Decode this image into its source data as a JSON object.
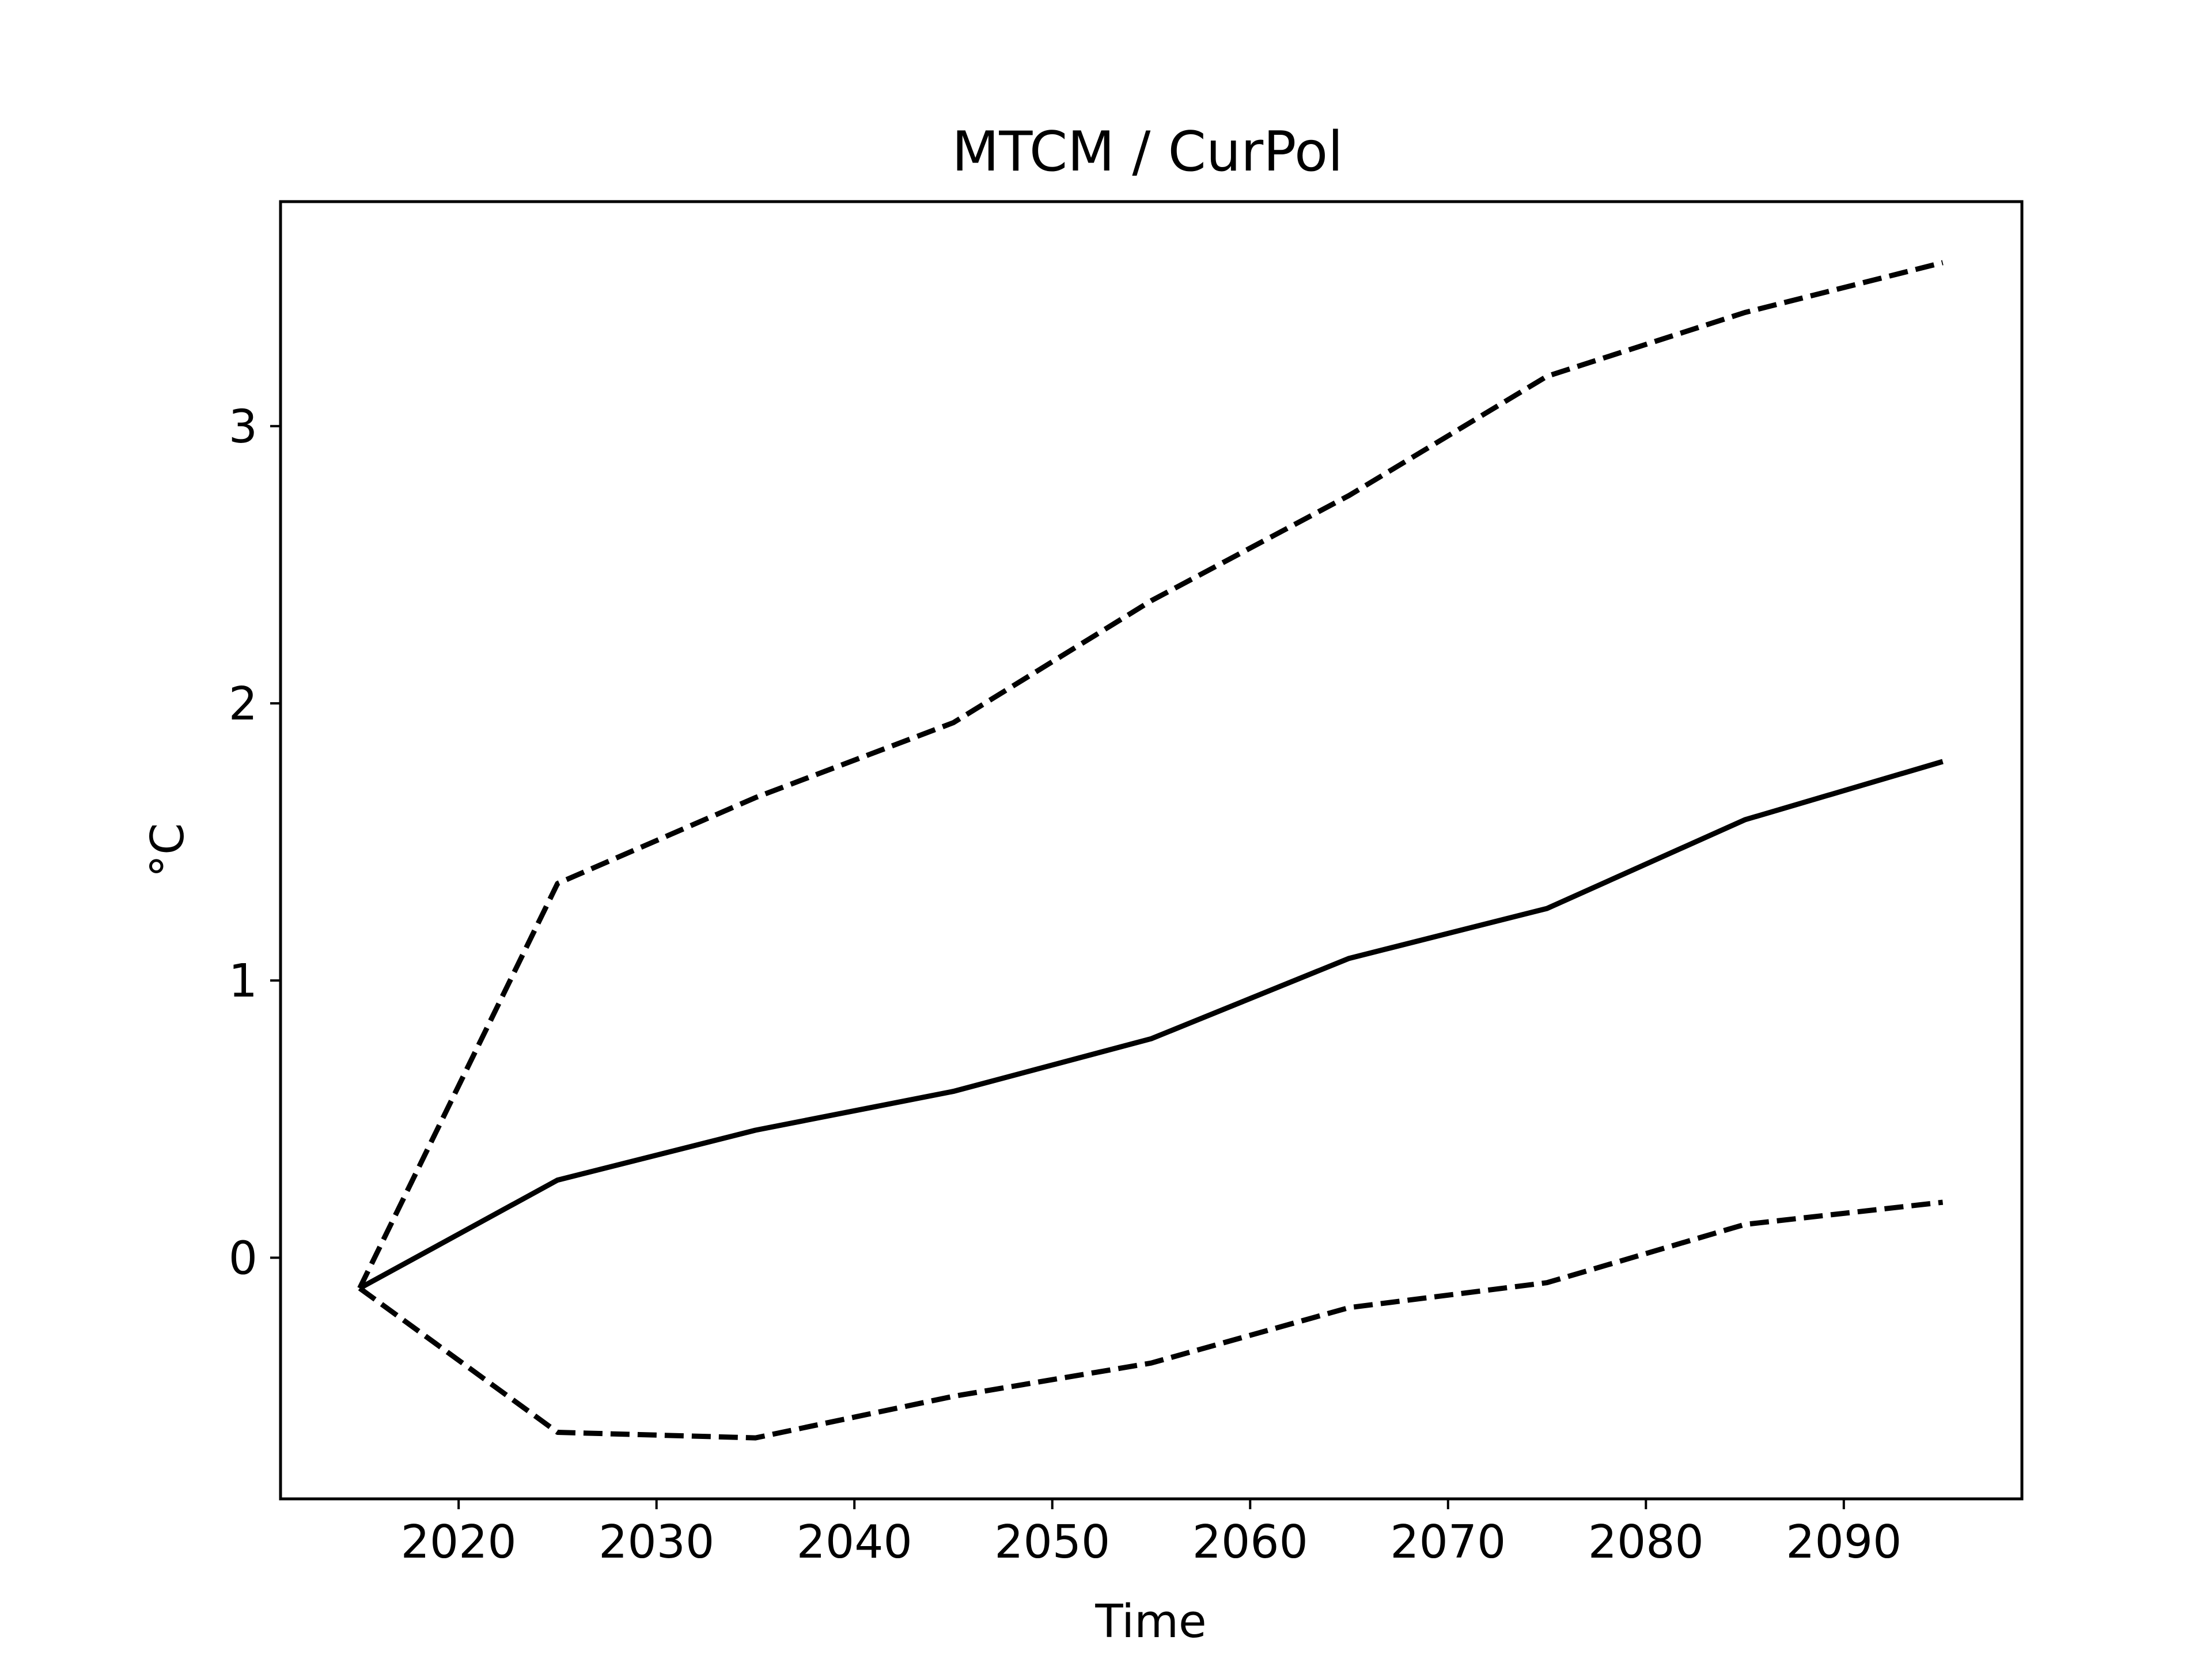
{
  "chart_data": {
    "type": "line",
    "title": "MTCM / CurPol",
    "xlabel": "Time",
    "ylabel": "°C",
    "xlim": [
      2011,
      2099
    ],
    "ylim": [
      -0.87,
      3.81
    ],
    "xticks": [
      2020,
      2030,
      2040,
      2050,
      2060,
      2070,
      2080,
      2090
    ],
    "yticks": [
      0,
      1,
      2,
      3
    ],
    "grid": false,
    "x": [
      2015,
      2025,
      2035,
      2045,
      2055,
      2065,
      2075,
      2085,
      2095
    ],
    "series": [
      {
        "style": "solid",
        "values": [
          -0.11,
          0.28,
          0.46,
          0.6,
          0.79,
          1.08,
          1.26,
          1.58,
          1.79
        ]
      },
      {
        "style": "dashed",
        "values": [
          -0.11,
          1.35,
          1.66,
          1.93,
          2.37,
          2.75,
          3.18,
          3.41,
          3.59
        ]
      },
      {
        "style": "dashed",
        "values": [
          -0.11,
          -0.63,
          -0.65,
          -0.5,
          -0.38,
          -0.18,
          -0.09,
          0.12,
          0.2
        ]
      }
    ],
    "colors": {
      "line": "#000000",
      "axes": "#000000",
      "background": "#ffffff"
    }
  }
}
